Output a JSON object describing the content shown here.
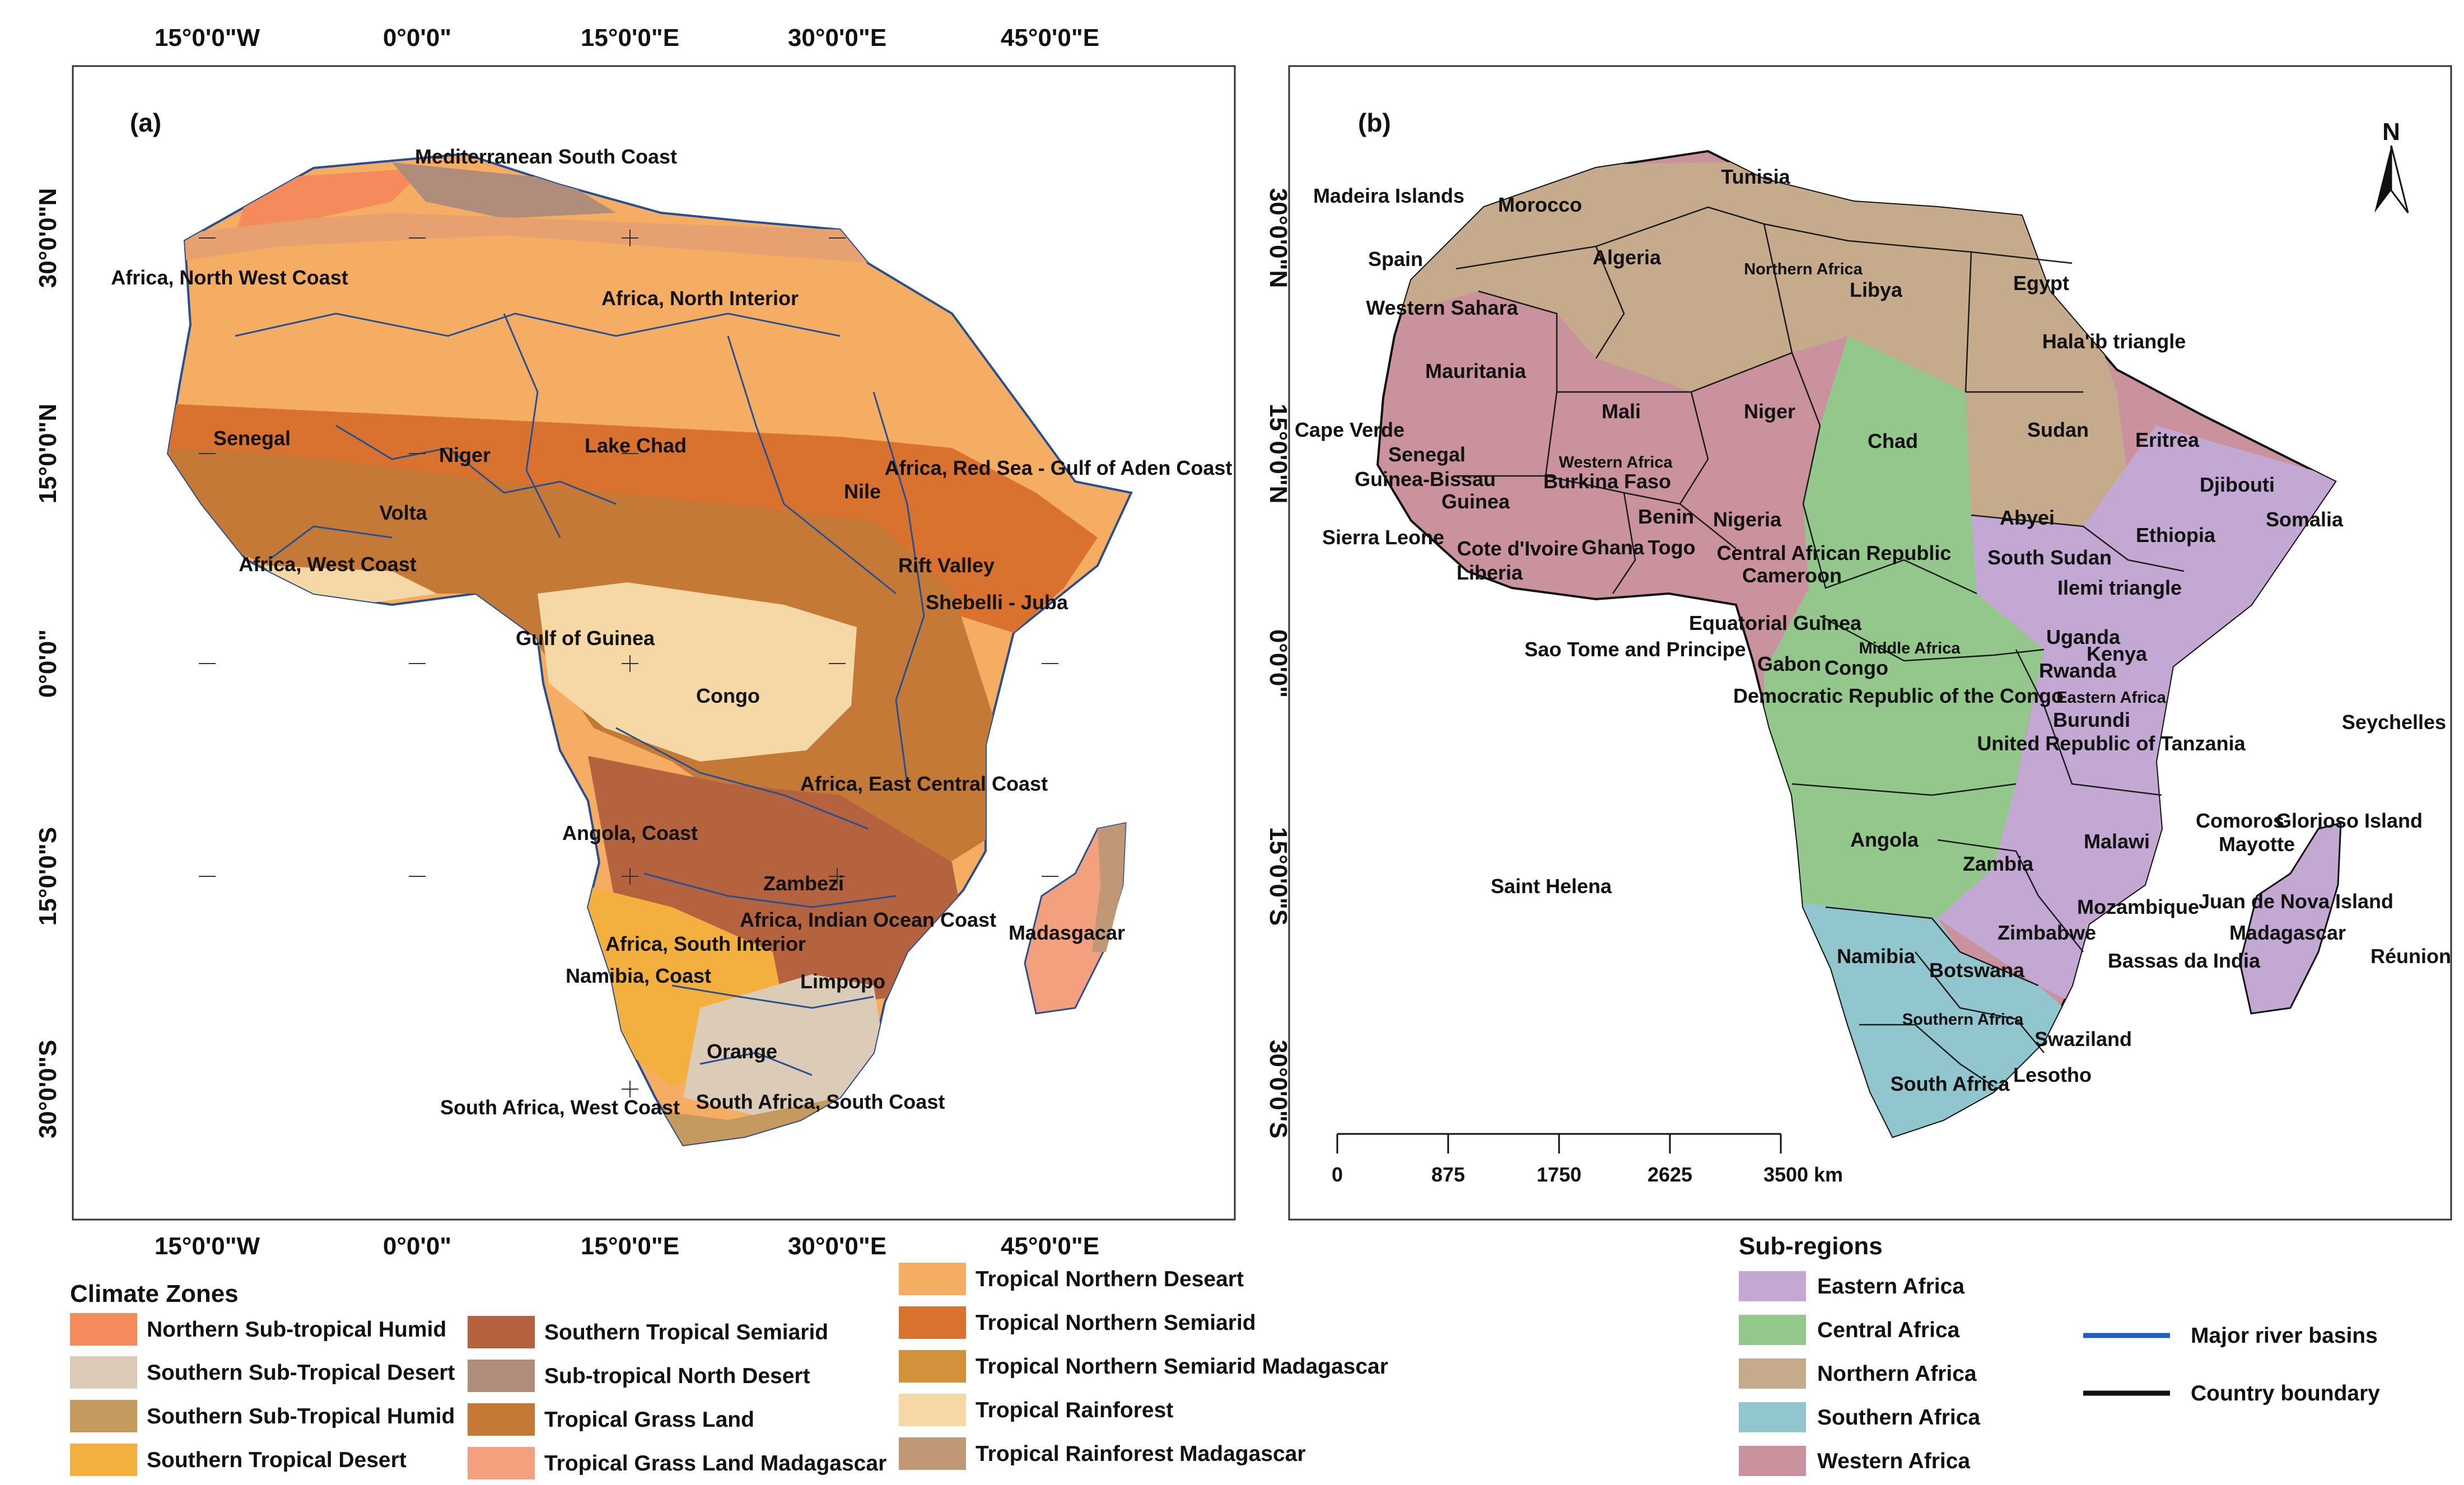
{
  "panel_a": {
    "label": "(a)",
    "lon_ticks": [
      "15°0'0\"W",
      "0°0'0\"",
      "15°0'0\"E",
      "30°0'0\"E",
      "45°0'0\"E"
    ],
    "lat_ticks": [
      "30°0'0\"N",
      "15°0'0\"N",
      "0°0'0\"",
      "15°0'0\"S",
      "30°0'0\"S"
    ],
    "zone_labels": [
      "Mediterranean South Coast",
      "Africa, North West Coast",
      "Africa, North Interior",
      "Senegal",
      "Niger",
      "Lake Chad",
      "Africa, Red Sea - Gulf of Aden Coast",
      "Nile",
      "Volta",
      "Africa, West Coast",
      "Rift Valley",
      "Shebelli - Juba",
      "Gulf of Guinea",
      "Congo",
      "Africa, East Central Coast",
      "Angola, Coast",
      "Zambezi",
      "Africa, Indian Ocean Coast",
      "Africa, South Interior",
      "Madasgacar",
      "Namibia, Coast",
      "Limpopo",
      "Orange",
      "South Africa, West Coast",
      "South Africa, South Coast"
    ]
  },
  "panel_b": {
    "label": "(b)",
    "lon_ticks": [
      "30°0'0\"N",
      "15°0'0\"N",
      "0°0'0\"",
      "15°0'0\"S",
      "30°0'0\"S"
    ],
    "north_arrow": "N",
    "country_labels": [
      "Madeira Islands",
      "Morocco",
      "Tunisia",
      "Algeria",
      "Northern Africa",
      "Libya",
      "Egypt",
      "Spain",
      "Western Sahara",
      "Hala'ib triangle",
      "Mauritania",
      "Mali",
      "Niger",
      "Chad",
      "Sudan",
      "Eritrea",
      "Cape Verde",
      "Senegal",
      "Western Africa",
      "Guinea-Bissau",
      "Burkina Faso",
      "Guinea",
      "Djibouti",
      "Benin",
      "Nigeria",
      "Somalia",
      "Abyei",
      "Ethiopia",
      "Sierra Leone",
      "Cote d'Ivoire",
      "Ghana",
      "Togo",
      "Central African Republic",
      "South Sudan",
      "Liberia",
      "Cameroon",
      "Ilemi triangle",
      "Equatorial Guinea",
      "Uganda",
      "Middle Africa",
      "Sao Tome and Principe",
      "Gabon",
      "Congo",
      "Kenya",
      "Rwanda",
      "Eastern Africa",
      "Democratic Republic of the Congo",
      "Burundi",
      "Seychelles",
      "United Republic of Tanzania",
      "Comoros",
      "Glorioso Island",
      "Mayotte",
      "Angola",
      "Malawi",
      "Zambia",
      "Saint Helena",
      "Mozambique",
      "Juan de Nova Island",
      "Madagascar",
      "Zimbabwe",
      "Namibia",
      "Botswana",
      "Bassas da India",
      "Réunion",
      "Southern Africa",
      "Swaziland",
      "Lesotho",
      "South Africa"
    ],
    "scale_bar": {
      "ticks": [
        "0",
        "875",
        "1750",
        "2625",
        "3500 km"
      ]
    }
  },
  "climate_legend": {
    "title": "Climate Zones",
    "items": [
      {
        "label": "Northern Sub-tropical Humid",
        "color": "#f58b5c"
      },
      {
        "label": "Southern Sub-Tropical Desert",
        "color": "#dccbb7"
      },
      {
        "label": "Southern Sub-Tropical Humid",
        "color": "#c59a5e"
      },
      {
        "label": "Southern Tropical Desert",
        "color": "#f4b03f"
      },
      {
        "label": "Southern Tropical Semiarid",
        "color": "#b5623f"
      },
      {
        "label": "Sub-tropical North Desert",
        "color": "#b08c7a"
      },
      {
        "label": "Tropical Grass Land",
        "color": "#c47a36"
      },
      {
        "label": "Tropical Grass Land Madagascar",
        "color": "#f2a07d"
      },
      {
        "label": "Tropical Northern Deseart",
        "color": "#f5ad64"
      },
      {
        "label": "Tropical Northern Semiarid",
        "color": "#d9722f"
      },
      {
        "label": "Tropical Northern Semiarid Madagascar",
        "color": "#d2913a"
      },
      {
        "label": "Tropical Rainforest",
        "color": "#f5d8a6"
      },
      {
        "label": "Tropical Rainforest Madagascar",
        "color": "#c09875"
      }
    ]
  },
  "subregion_legend": {
    "title": "Sub-regions",
    "items": [
      {
        "label": "Eastern Africa",
        "color": "#c3a8d3"
      },
      {
        "label": "Central Africa",
        "color": "#93c78c"
      },
      {
        "label": "Northern Africa",
        "color": "#c5ab8b"
      },
      {
        "label": "Southern Africa",
        "color": "#91c6cf"
      },
      {
        "label": "Western Africa",
        "color": "#c9929c"
      }
    ]
  },
  "line_legend": {
    "items": [
      {
        "label": "Major river basins",
        "color": "#1f5fbf"
      },
      {
        "label": "Country boundary",
        "color": "#111111"
      }
    ]
  }
}
